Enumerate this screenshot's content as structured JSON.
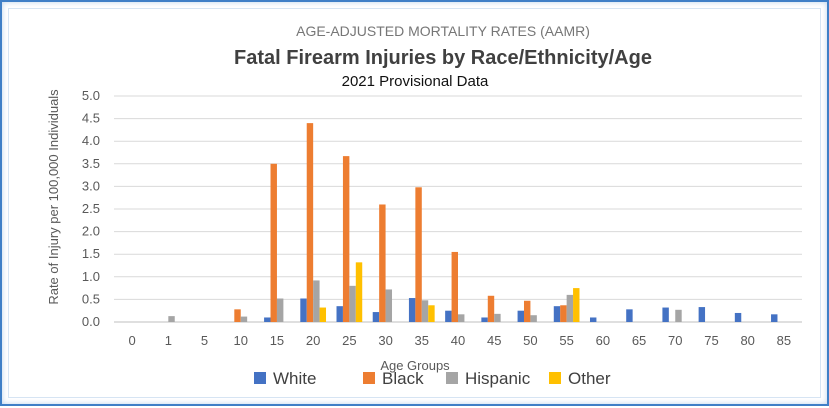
{
  "chart_data": {
    "type": "bar",
    "supertitle": "AGE-ADJUSTED MORTALITY RATES (AAMR)",
    "title": "Fatal Firearm Injuries by Race/Ethnicity/Age",
    "subtitle": "2021 Provisional Data",
    "xlabel": "Age Groups",
    "ylabel": "Rate of Injury per 100,000 Individuals",
    "ylim": [
      0,
      5
    ],
    "yticks": [
      "0.0",
      "0.5",
      "1.0",
      "1.5",
      "2.0",
      "2.5",
      "3.0",
      "3.5",
      "4.0",
      "4.5",
      "5.0"
    ],
    "categories": [
      "0",
      "1",
      "5",
      "10",
      "15",
      "20",
      "25",
      "30",
      "35",
      "40",
      "45",
      "50",
      "55",
      "60",
      "65",
      "70",
      "75",
      "80",
      "85"
    ],
    "grid": true,
    "legend_position": "bottom",
    "series": [
      {
        "name": "White",
        "color": "#4472c4",
        "values": [
          0,
          0,
          0,
          0,
          0.1,
          0.52,
          0.35,
          0.22,
          0.53,
          0.25,
          0.1,
          0.25,
          0.35,
          0.1,
          0.28,
          0.32,
          0.33,
          0.2,
          0.17
        ]
      },
      {
        "name": "Black",
        "color": "#ed7d31",
        "values": [
          0,
          0,
          0,
          0.28,
          3.5,
          4.4,
          3.67,
          2.6,
          2.98,
          1.55,
          0.58,
          0.47,
          0.37,
          0,
          0,
          0,
          0,
          0,
          0
        ]
      },
      {
        "name": "Hispanic",
        "color": "#a5a5a5",
        "values": [
          0,
          0.13,
          0,
          0.12,
          0.52,
          0.92,
          0.8,
          0.72,
          0.48,
          0.17,
          0.18,
          0.15,
          0.6,
          0,
          0,
          0.27,
          0,
          0,
          0
        ]
      },
      {
        "name": "Other",
        "color": "#ffc000",
        "values": [
          0,
          0,
          0,
          0,
          0,
          0.32,
          1.32,
          0,
          0.37,
          0,
          0,
          0,
          0.75,
          0,
          0,
          0,
          0,
          0,
          0
        ]
      }
    ]
  }
}
